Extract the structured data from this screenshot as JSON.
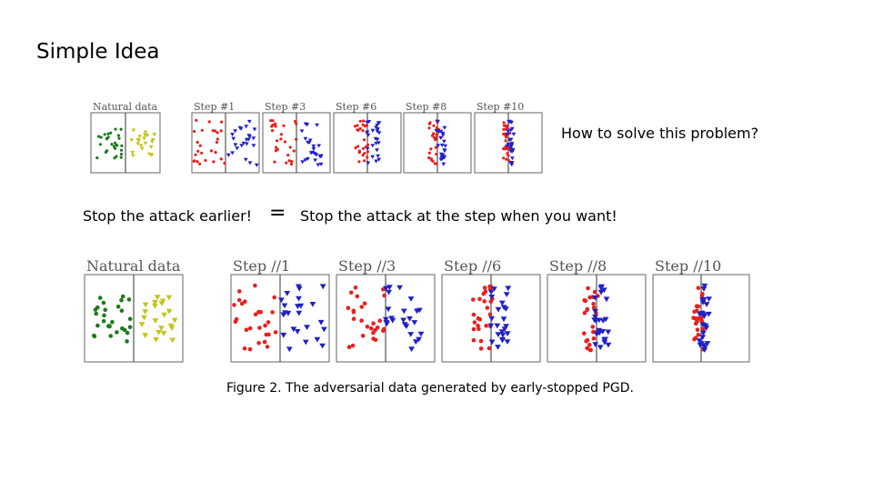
{
  "slide": {
    "title": "Simple Idea",
    "question": "How to solve this problem?",
    "statement_left": "Stop the attack earlier!",
    "equals_sign": "=",
    "statement_right": "Stop the attack at the step when you want!",
    "caption": "Figure 2. The adversarial data generated by early-stopped PGD."
  },
  "colors": {
    "natural_class_a": "#1e7a1e",
    "natural_class_b": "#c4c41c",
    "adversarial_class_a": "#e8201e",
    "adversarial_class_b": "#2020c8",
    "panel_border": "#666666"
  },
  "figures": [
    {
      "name": "small-figure",
      "panels": [
        {
          "label": "Natural data",
          "type": "natural"
        },
        {
          "label": "Step #1",
          "type": "step",
          "step": 1
        },
        {
          "label": "Step #3",
          "type": "step",
          "step": 3
        },
        {
          "label": "Step #6",
          "type": "step",
          "step": 6
        },
        {
          "label": "Step #8",
          "type": "step",
          "step": 8
        },
        {
          "label": "Step #10",
          "type": "step",
          "step": 10
        }
      ]
    },
    {
      "name": "large-figure",
      "panels": [
        {
          "label": "Natural data",
          "type": "natural"
        },
        {
          "label": "Step //1",
          "type": "step",
          "step": 1
        },
        {
          "label": "Step //3",
          "type": "step",
          "step": 3
        },
        {
          "label": "Step //6",
          "type": "step",
          "step": 6
        },
        {
          "label": "Step //8",
          "type": "step",
          "step": 8
        },
        {
          "label": "Step //10",
          "type": "step",
          "step": 10
        }
      ]
    }
  ]
}
